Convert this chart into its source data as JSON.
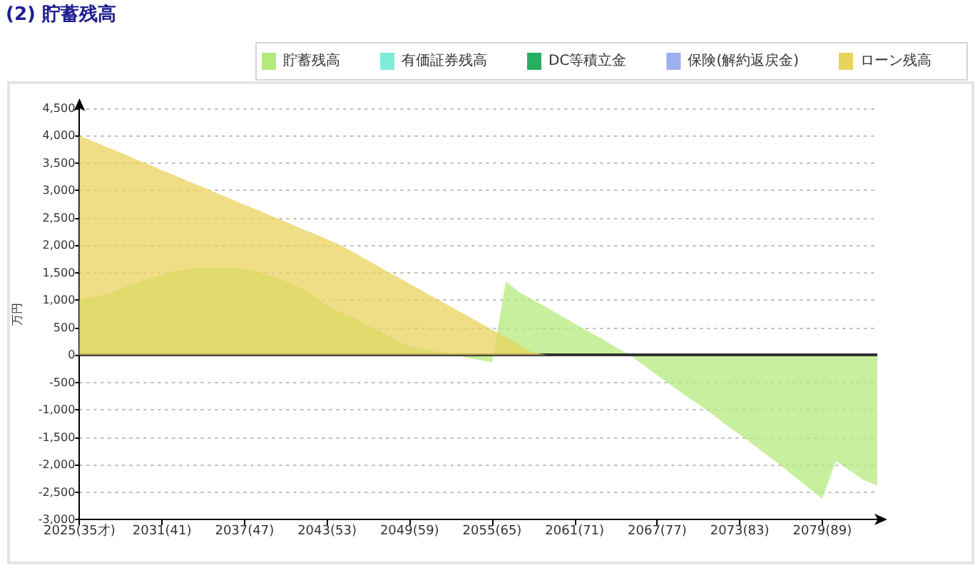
{
  "chart_data": {
    "type": "area",
    "title": "(2) 貯蓄残高",
    "ylabel": "万円",
    "categories": [
      "2025(35才)",
      null,
      null,
      null,
      null,
      null,
      "2031(41)",
      null,
      null,
      null,
      null,
      null,
      "2037(47)",
      null,
      null,
      null,
      null,
      null,
      "2043(53)",
      null,
      null,
      null,
      null,
      null,
      "2049(59)",
      null,
      null,
      null,
      null,
      null,
      "2055(65)",
      null,
      null,
      null,
      null,
      null,
      "2061(71)",
      null,
      null,
      null,
      null,
      null,
      "2067(77)",
      null,
      null,
      null,
      null,
      null,
      "2073(83)",
      null,
      null,
      null,
      null,
      null,
      "2079(89)",
      null,
      null,
      null,
      null
    ],
    "series": [
      {
        "name": "貯蓄残高",
        "color": "#b4e97c",
        "values": [
          1000,
          1070,
          1100,
          1210,
          1300,
          1390,
          1460,
          1530,
          1570,
          1590,
          1590,
          1590,
          1570,
          1510,
          1430,
          1340,
          1230,
          1080,
          900,
          770,
          680,
          530,
          410,
          270,
          150,
          110,
          60,
          30,
          -40,
          -90,
          -130,
          1340,
          1140,
          1000,
          860,
          720,
          570,
          430,
          290,
          140,
          0,
          -180,
          -370,
          -550,
          -730,
          -900,
          -1080,
          -1270,
          -1450,
          -1640,
          -1830,
          -2020,
          -2220,
          -2420,
          -2620,
          -1930,
          -2110,
          -2280,
          -2380
        ]
      },
      {
        "name": "有価証券残高",
        "color": "#7fecd9",
        "values": [
          null,
          null,
          null,
          null,
          null,
          null,
          null,
          null,
          null,
          null,
          null,
          null,
          null,
          null,
          null,
          null,
          null,
          null,
          null,
          null,
          null,
          null,
          null,
          null,
          null,
          null,
          null,
          null,
          null,
          null,
          null,
          null,
          null,
          null,
          null,
          null,
          null,
          null,
          null,
          null,
          null,
          null,
          null,
          null,
          null,
          null,
          null,
          null,
          null,
          null,
          null,
          null,
          null,
          null,
          null,
          null,
          null,
          null,
          null
        ]
      },
      {
        "name": "DC等積立金",
        "color": "#27ae60",
        "values": [
          null,
          null,
          null,
          null,
          null,
          null,
          null,
          null,
          null,
          null,
          null,
          null,
          null,
          null,
          null,
          null,
          null,
          null,
          null,
          null,
          null,
          null,
          null,
          null,
          null,
          null,
          null,
          null,
          null,
          null,
          null,
          null,
          null,
          null,
          null,
          null,
          null,
          null,
          null,
          null,
          null,
          null,
          null,
          null,
          null,
          null,
          null,
          null,
          null,
          null,
          null,
          null,
          null,
          null,
          null,
          null,
          null,
          null,
          null
        ]
      },
      {
        "name": "保険(解約返戻金)",
        "color": "#9cb0f0",
        "values": [
          null,
          null,
          null,
          null,
          null,
          null,
          null,
          null,
          null,
          null,
          null,
          null,
          null,
          null,
          null,
          null,
          null,
          null,
          null,
          null,
          null,
          null,
          null,
          null,
          null,
          null,
          null,
          null,
          null,
          null,
          null,
          null,
          null,
          null,
          null,
          null,
          null,
          null,
          null,
          null,
          null,
          null,
          null,
          null,
          null,
          null,
          null,
          null,
          null,
          null,
          null,
          null,
          null,
          null,
          null,
          null,
          null,
          null,
          null
        ]
      },
      {
        "name": "ローン残高",
        "color": "#e9d35c",
        "values": [
          4000,
          3900,
          3790,
          3690,
          3580,
          3480,
          3370,
          3270,
          3160,
          3060,
          2950,
          2850,
          2740,
          2640,
          2530,
          2430,
          2320,
          2220,
          2110,
          2000,
          1860,
          1720,
          1580,
          1440,
          1300,
          1160,
          1020,
          880,
          740,
          600,
          460,
          320,
          180,
          40,
          0,
          0,
          0,
          0,
          0,
          0,
          0,
          0,
          0,
          0,
          0,
          0,
          0,
          0,
          0,
          0,
          0,
          0,
          0,
          0,
          0,
          0,
          0,
          0,
          0
        ]
      }
    ],
    "ylim": [
      -3000,
      4500
    ],
    "yticks": [
      {
        "value": -3000,
        "label": "-3,000"
      },
      {
        "value": -2500,
        "label": "-2,500"
      },
      {
        "value": -2000,
        "label": "-2,000"
      },
      {
        "value": -1500,
        "label": "-1,500"
      },
      {
        "value": -1000,
        "label": "-1,000"
      },
      {
        "value": -500,
        "label": "-500"
      },
      0,
      500,
      {
        "value": 1000,
        "label": "1,000"
      },
      {
        "value": 1500,
        "label": "1,500"
      },
      {
        "value": 2000,
        "label": "2,000"
      },
      {
        "value": 2500,
        "label": "2,500"
      },
      {
        "value": 3000,
        "label": "3,000"
      },
      {
        "value": 3500,
        "label": "3,500"
      },
      {
        "value": 4000,
        "label": "4,000"
      },
      {
        "value": 4500,
        "label": "4,500"
      }
    ],
    "ref_lines": [
      {
        "axis": "y",
        "value": 0,
        "color": "#333333"
      }
    ],
    "grid": "y",
    "legend": "top right"
  }
}
